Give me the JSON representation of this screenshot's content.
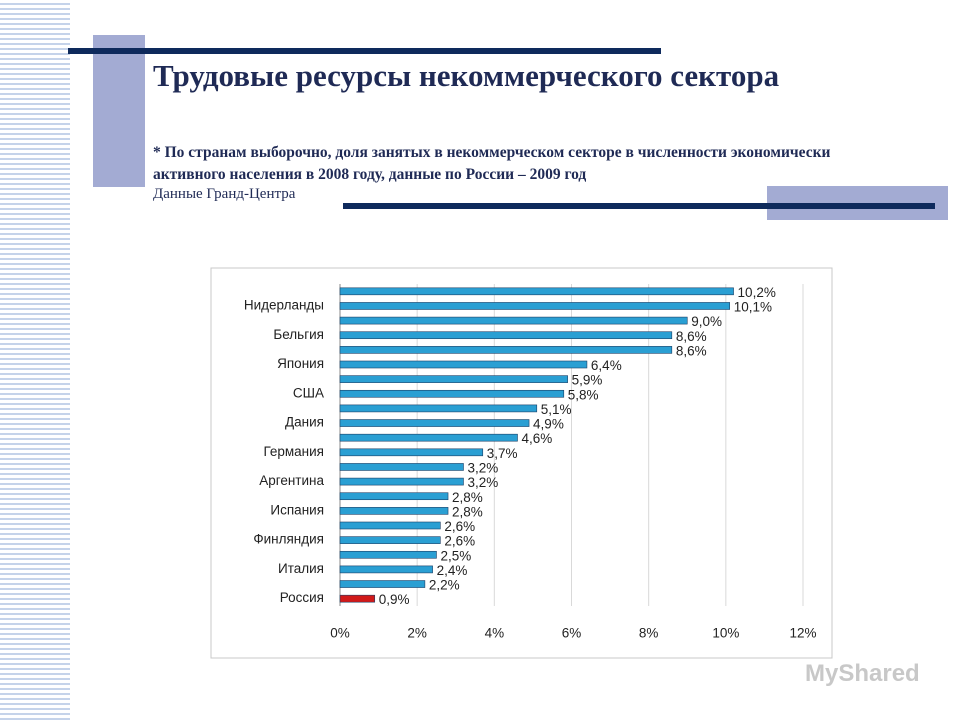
{
  "slide": {
    "title": "Трудовые ресурсы некоммерческого сектора",
    "subtitle": "* По странам выборочно, доля занятых в некоммерческом секторе в численности экономически активного населения в 2008 году, данные по России – 2009 год",
    "source": "Данные Гранд-Центра",
    "watermark": "MyShared"
  },
  "chart_data": {
    "type": "hbar",
    "categories": [
      null,
      "Нидерланды",
      null,
      "Бельгия",
      null,
      "Япония",
      null,
      "США",
      null,
      "Дания",
      null,
      "Германия",
      null,
      "Аргентина",
      null,
      "Испания",
      null,
      "Финляндия",
      null,
      "Италия",
      null,
      "Россия"
    ],
    "values": [
      10.2,
      10.1,
      9.0,
      8.6,
      8.6,
      6.4,
      5.9,
      5.8,
      5.1,
      4.9,
      4.6,
      3.7,
      3.2,
      3.2,
      2.8,
      2.8,
      2.6,
      2.6,
      2.5,
      2.4,
      2.2,
      0.9
    ],
    "value_labels": [
      "10,2%",
      "10,1%",
      "9,0%",
      "8,6%",
      "8,6%",
      "6,4%",
      "5,9%",
      "5,8%",
      "5,1%",
      "4,9%",
      "4,6%",
      "3,7%",
      "3,2%",
      "3,2%",
      "2,8%",
      "2,8%",
      "2,6%",
      "2,6%",
      "2,5%",
      "2,4%",
      "2,2%",
      "0,9%"
    ],
    "colors": [
      "#2a9fd3",
      "#2a9fd3",
      "#2a9fd3",
      "#2a9fd3",
      "#2a9fd3",
      "#2a9fd3",
      "#2a9fd3",
      "#2a9fd3",
      "#2a9fd3",
      "#2a9fd3",
      "#2a9fd3",
      "#2a9fd3",
      "#2a9fd3",
      "#2a9fd3",
      "#2a9fd3",
      "#2a9fd3",
      "#2a9fd3",
      "#2a9fd3",
      "#2a9fd3",
      "#2a9fd3",
      "#2a9fd3",
      "#d11a1a"
    ],
    "xlim": [
      0,
      12
    ],
    "xticks": [
      {
        "value": 0,
        "label": "0%"
      },
      {
        "value": 2,
        "label": "2%"
      },
      {
        "value": 4,
        "label": "4%"
      },
      {
        "value": 6,
        "label": "6%"
      },
      {
        "value": 8,
        "label": "8%"
      },
      {
        "value": 10,
        "label": "10%"
      },
      {
        "value": 12,
        "label": "12%"
      }
    ],
    "grid": true
  }
}
